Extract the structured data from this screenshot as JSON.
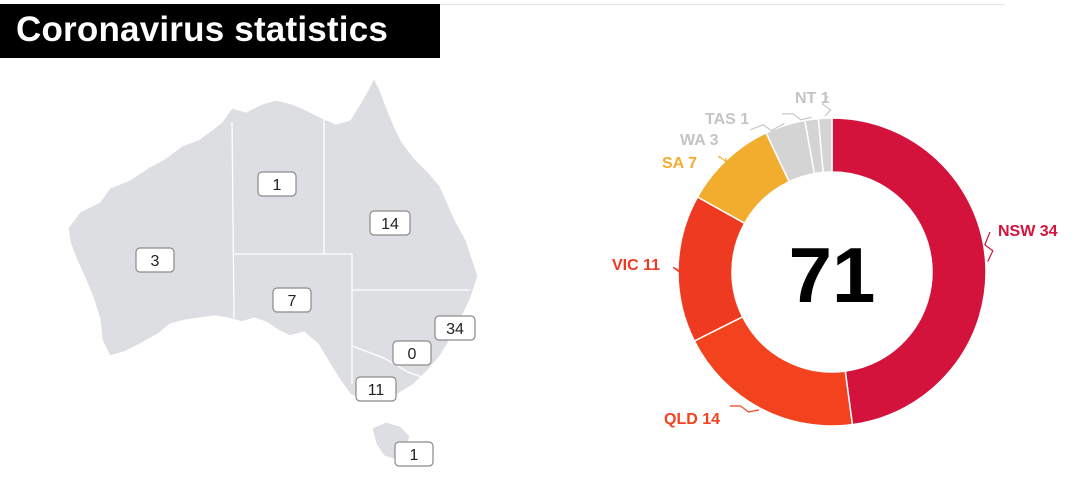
{
  "title": "Coronavirus statistics",
  "colors": {
    "map_fill": "#dcdee1",
    "border": "#ffffff",
    "nsw": "#d4133c",
    "vic": "#ef3a22",
    "qld": "#f2421e",
    "sa": "#f2ad2e",
    "other": "#d4d4d4"
  },
  "map": {
    "labels": [
      {
        "state": "WA",
        "value": "3"
      },
      {
        "state": "NT",
        "value": "1"
      },
      {
        "state": "QLD",
        "value": "14"
      },
      {
        "state": "SA",
        "value": "7"
      },
      {
        "state": "NSW",
        "value": "34"
      },
      {
        "state": "ACT",
        "value": "0"
      },
      {
        "state": "VIC",
        "value": "11"
      },
      {
        "state": "TAS",
        "value": "1"
      }
    ]
  },
  "chart_data": {
    "type": "pie",
    "variant": "donut",
    "total_label": "71",
    "slices": [
      {
        "label": "NSW",
        "value": 34,
        "color": "#d4133c"
      },
      {
        "label": "QLD",
        "value": 14,
        "color": "#f2421e"
      },
      {
        "label": "VIC",
        "value": 11,
        "color": "#ef3a22"
      },
      {
        "label": "SA",
        "value": 7,
        "color": "#f2ad2e"
      },
      {
        "label": "WA",
        "value": 3,
        "color": "#d4d4d4"
      },
      {
        "label": "TAS",
        "value": 1,
        "color": "#d4d4d4"
      },
      {
        "label": "NT",
        "value": 1,
        "color": "#d4d4d4"
      }
    ]
  }
}
